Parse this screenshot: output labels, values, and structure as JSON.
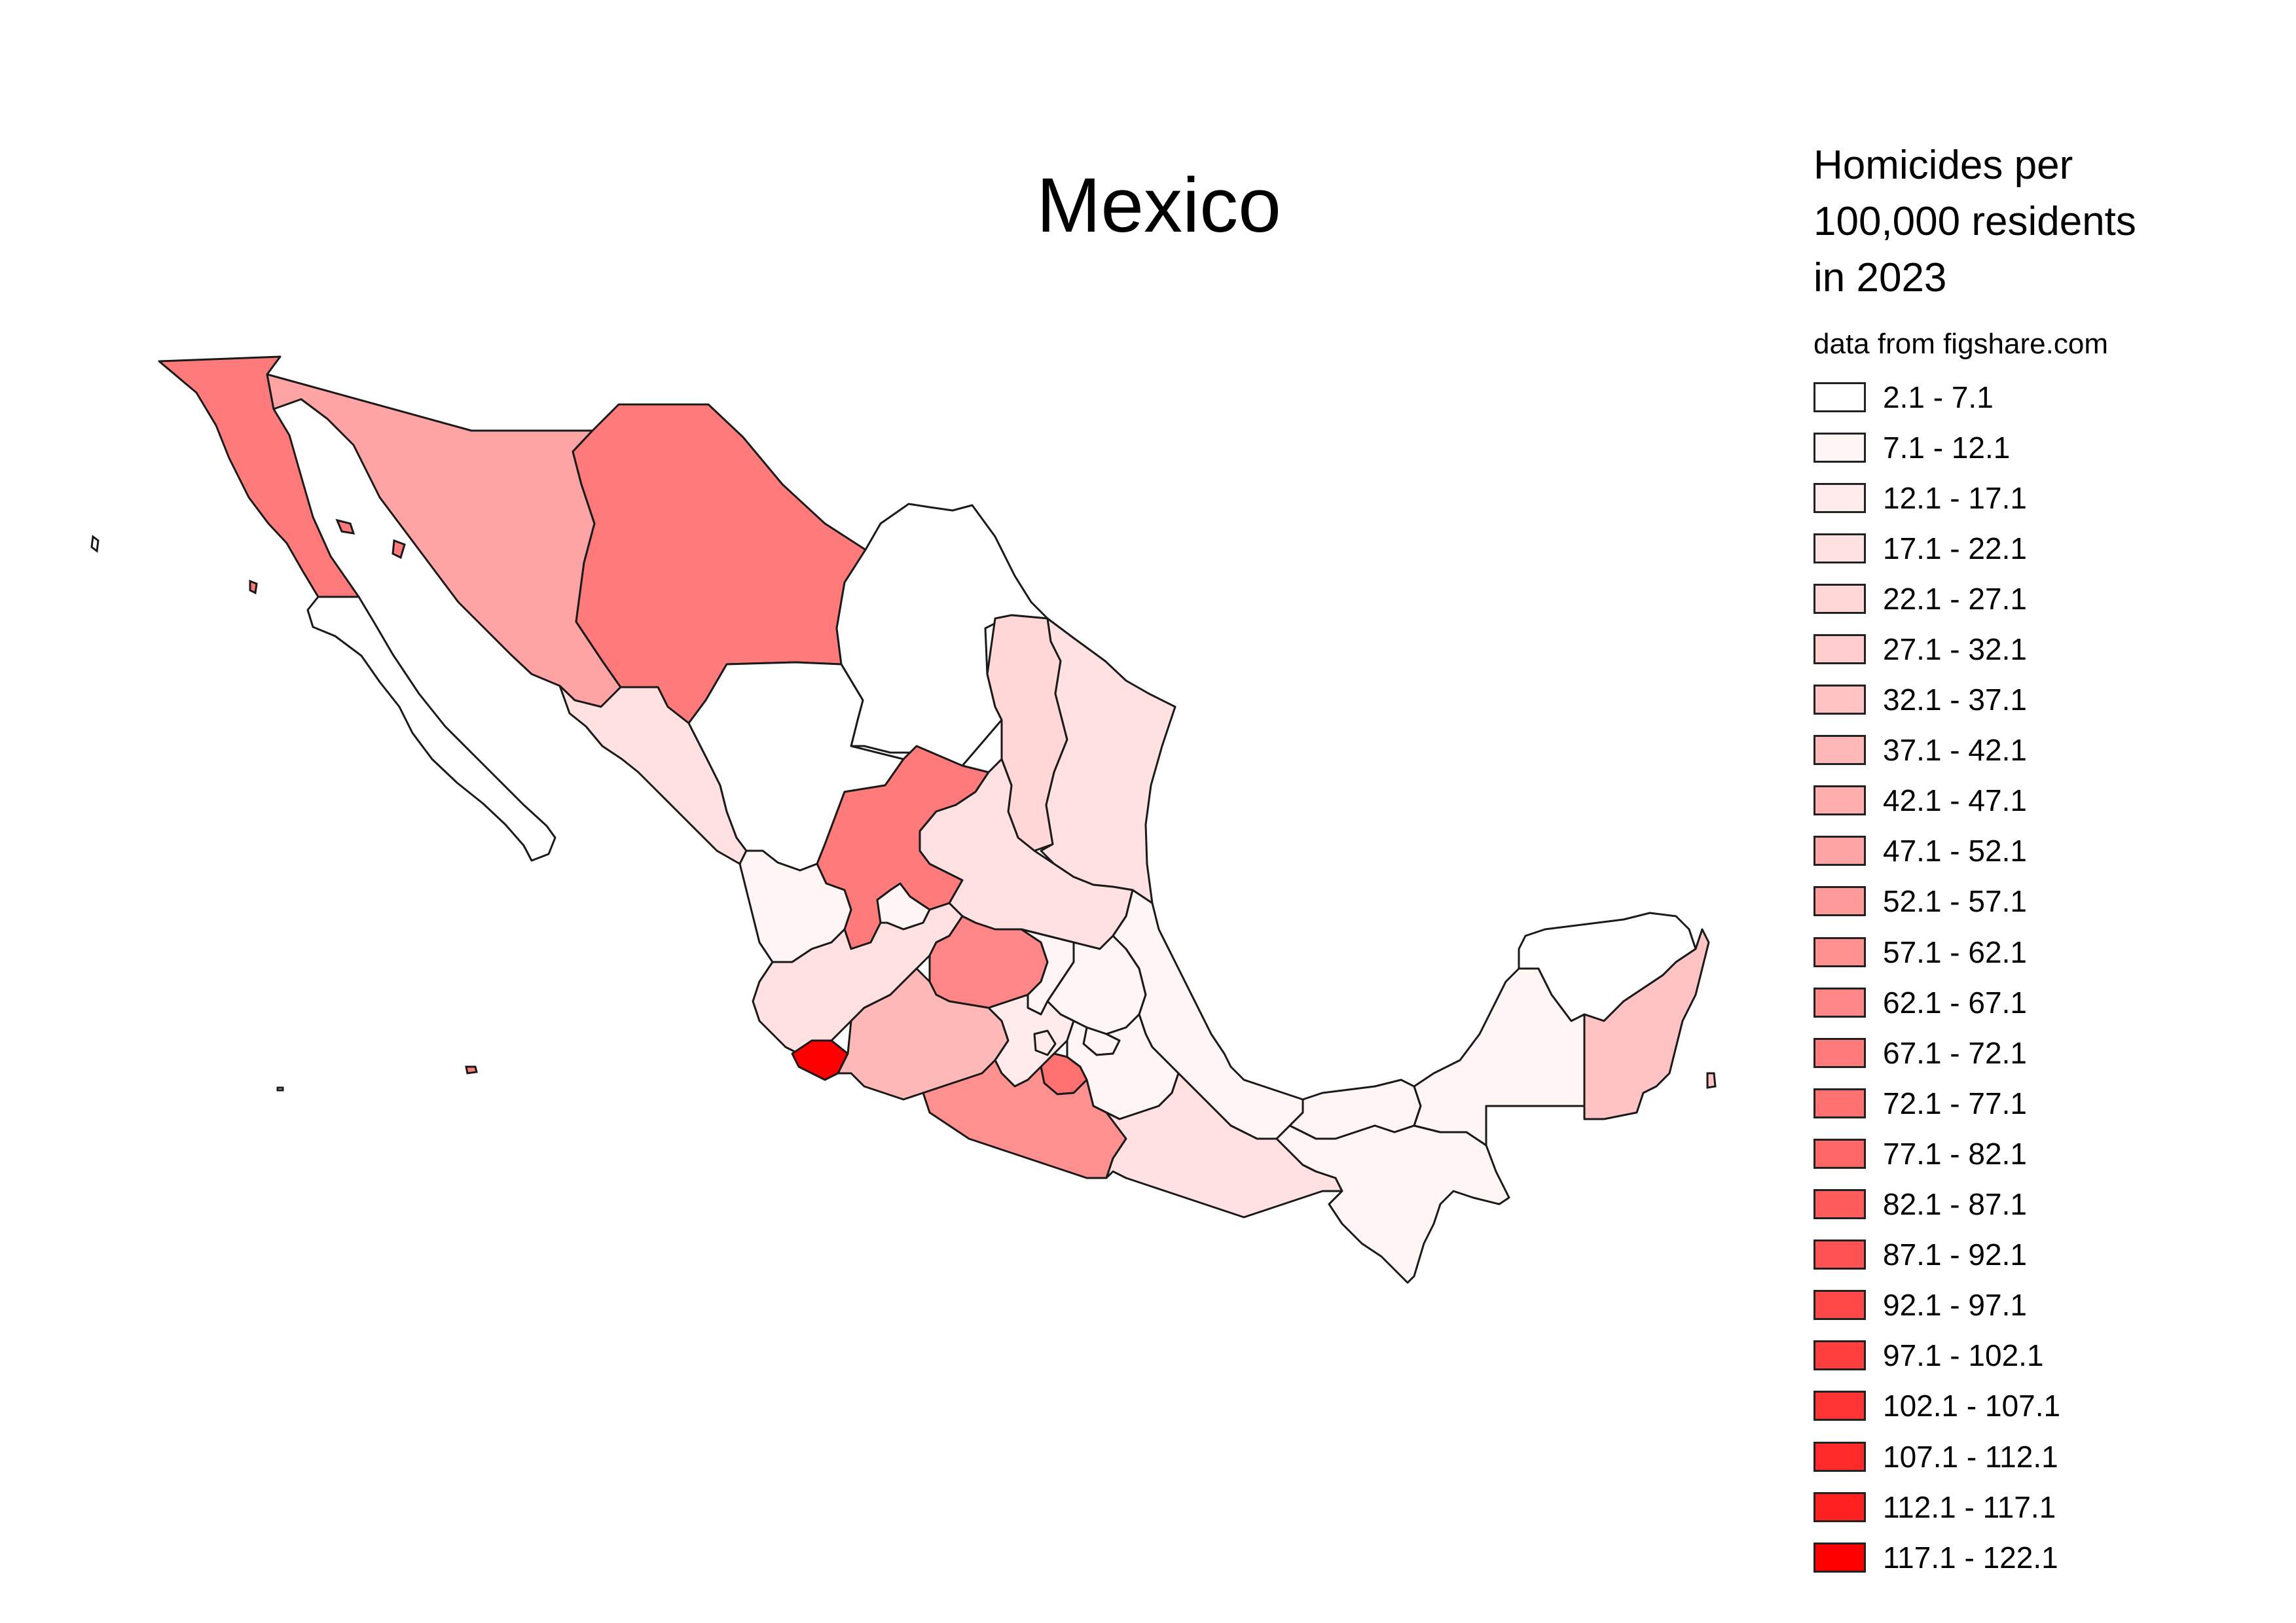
{
  "title": "Mexico",
  "legend": {
    "title": "Homicides per\n100,000 residents\nin 2023",
    "subtitle": "data from figshare.com",
    "classes": [
      {
        "label": "2.1 - 7.1",
        "color": "#ffffff"
      },
      {
        "label": "7.1 - 12.1",
        "color": "#fff5f5"
      },
      {
        "label": "12.1 - 17.1",
        "color": "#ffebeb"
      },
      {
        "label": "17.1 - 22.1",
        "color": "#ffe1e1"
      },
      {
        "label": "22.1 - 27.1",
        "color": "#ffd7d7"
      },
      {
        "label": "27.1 - 32.1",
        "color": "#ffcdcd"
      },
      {
        "label": "32.1 - 37.1",
        "color": "#ffc3c3"
      },
      {
        "label": "37.1 - 42.1",
        "color": "#ffb8b8"
      },
      {
        "label": "42.1 - 47.1",
        "color": "#ffaeae"
      },
      {
        "label": "47.1 - 52.1",
        "color": "#ffa4a4"
      },
      {
        "label": "52.1 - 57.1",
        "color": "#ff9a9a"
      },
      {
        "label": "57.1 - 62.1",
        "color": "#ff9090"
      },
      {
        "label": "62.1 - 67.1",
        "color": "#ff8686"
      },
      {
        "label": "67.1 - 72.1",
        "color": "#ff7b7b"
      },
      {
        "label": "72.1 - 77.1",
        "color": "#ff7171"
      },
      {
        "label": "77.1 - 82.1",
        "color": "#ff6767"
      },
      {
        "label": "82.1 - 87.1",
        "color": "#ff5d5d"
      },
      {
        "label": "87.1 - 92.1",
        "color": "#ff5353"
      },
      {
        "label": "92.1 - 97.1",
        "color": "#ff4949"
      },
      {
        "label": "97.1 - 102.1",
        "color": "#ff3e3e"
      },
      {
        "label": "102.1 - 107.1",
        "color": "#ff3434"
      },
      {
        "label": "107.1 - 112.1",
        "color": "#ff2a2a"
      },
      {
        "label": "112.1 - 117.1",
        "color": "#ff2020"
      },
      {
        "label": "117.1 - 122.1",
        "color": "#ff0000"
      }
    ]
  },
  "regions": [
    {
      "name": "baja-california",
      "class": 13
    },
    {
      "name": "baja-california-sur",
      "class": 0
    },
    {
      "name": "sonora",
      "class": 9
    },
    {
      "name": "chihuahua",
      "class": 13
    },
    {
      "name": "coahuila",
      "class": 0
    },
    {
      "name": "nuevo-leon",
      "class": 4
    },
    {
      "name": "tamaulipas",
      "class": 3
    },
    {
      "name": "sinaloa",
      "class": 3
    },
    {
      "name": "durango",
      "class": 0
    },
    {
      "name": "zacatecas",
      "class": 13
    },
    {
      "name": "san-luis-potosi",
      "class": 3
    },
    {
      "name": "nayarit",
      "class": 1
    },
    {
      "name": "aguascalientes",
      "class": 1
    },
    {
      "name": "jalisco",
      "class": 3
    },
    {
      "name": "guanajuato",
      "class": 12
    },
    {
      "name": "queretaro",
      "class": 1
    },
    {
      "name": "hidalgo",
      "class": 1
    },
    {
      "name": "veracruz",
      "class": 1
    },
    {
      "name": "colima",
      "class": 23
    },
    {
      "name": "michoacan",
      "class": 7
    },
    {
      "name": "estado-de-mexico",
      "class": 2
    },
    {
      "name": "ciudad-de-mexico",
      "class": 2
    },
    {
      "name": "morelos",
      "class": 14
    },
    {
      "name": "tlaxcala",
      "class": 1
    },
    {
      "name": "puebla",
      "class": 1
    },
    {
      "name": "guerrero",
      "class": 11
    },
    {
      "name": "oaxaca",
      "class": 3
    },
    {
      "name": "tabasco",
      "class": 1
    },
    {
      "name": "chiapas",
      "class": 1
    },
    {
      "name": "campeche",
      "class": 1
    },
    {
      "name": "yucatan",
      "class": 0
    },
    {
      "name": "quintana-roo",
      "class": 6
    }
  ]
}
